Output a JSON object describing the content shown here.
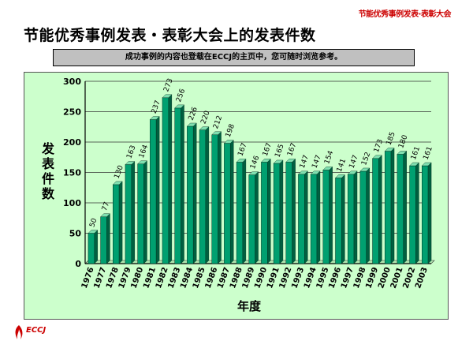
{
  "header": {
    "tag": "节能优秀事例发表·表彰大会",
    "title": "节能优秀事例发表・表彰大会上的发表件数",
    "notice": "成功事例的内容也登载在ECCJ的主页中，您可随时浏览参考。"
  },
  "footer": {
    "logo_text": "ECCJ"
  },
  "colors": {
    "bar_front": "#00a070",
    "bar_side": "#006040",
    "bar_top": "#80e0b0",
    "plot_bg": "#ccffcc",
    "brand": "#cc0000"
  },
  "chart_data": {
    "type": "bar",
    "title": "",
    "xlabel": "年度",
    "ylabel": "发表件数",
    "ylim": [
      0,
      300
    ],
    "yticks": [
      0,
      50,
      100,
      150,
      200,
      250,
      300
    ],
    "grid": true,
    "categories": [
      "1976",
      "1977",
      "1978",
      "1979",
      "1980",
      "1981",
      "1982",
      "1983",
      "1984",
      "1985",
      "1986",
      "1987",
      "1988",
      "1989",
      "1990",
      "1991",
      "1992",
      "1993",
      "1994",
      "1995",
      "1996",
      "1997",
      "1998",
      "1999",
      "2000",
      "2001",
      "2002",
      "2003"
    ],
    "values": [
      50,
      77,
      130,
      163,
      164,
      237,
      273,
      256,
      226,
      220,
      212,
      198,
      167,
      146,
      167,
      165,
      167,
      147,
      147,
      154,
      141,
      147,
      152,
      173,
      185,
      180,
      161,
      161
    ],
    "label_texts": [
      "50",
      "77",
      "130",
      "163",
      "164",
      "237",
      "273",
      "256",
      "226",
      "220",
      "212",
      "198",
      "167",
      "146",
      "167",
      "165",
      "167",
      "147",
      "147",
      "154",
      "141",
      "147",
      "152",
      "173",
      "185",
      "180",
      "161",
      "161"
    ]
  }
}
